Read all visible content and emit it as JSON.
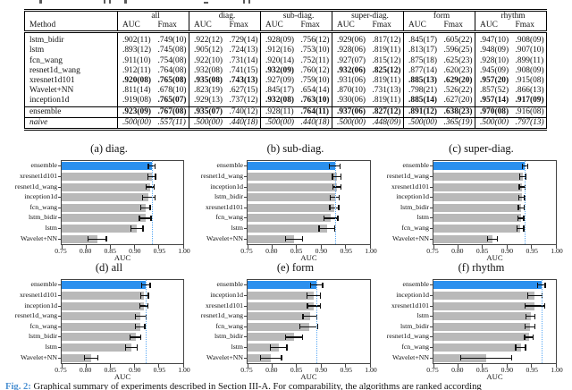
{
  "page": {
    "fig_caption": {
      "label": "Fig. 2:",
      "text": " Graphical summary of experiments described in Section III-A. For comparability, the algorithms are ranked according"
    },
    "colors": {
      "highlight_blue": "#2b90ee",
      "bar_gray": "#b9b9b9",
      "ref_line_blue": "#5aa9f5",
      "caption_label_blue": "#4a90d2",
      "error_bar": "#101010"
    }
  },
  "table": {
    "method_header": "Method",
    "groups": [
      "all",
      "diag.",
      "sub-diag.",
      "super-diag.",
      "form",
      "rhythm"
    ],
    "metrics": [
      "AUC",
      "Fmax"
    ],
    "rows": [
      {
        "method": "lstm_bidir",
        "values": [
          ".902(11)",
          ".749(10)",
          ".922(12)",
          ".729(14)",
          ".928(09)",
          ".756(12)",
          ".929(06)",
          ".817(12)",
          ".845(17)",
          ".605(22)",
          ".947(10)",
          ".908(09)"
        ],
        "bold": [
          0,
          0,
          0,
          0,
          0,
          0,
          0,
          0,
          0,
          0,
          0,
          0
        ]
      },
      {
        "method": "lstm",
        "values": [
          ".893(12)",
          ".745(08)",
          ".905(12)",
          ".724(13)",
          ".912(16)",
          ".753(10)",
          ".928(06)",
          ".819(11)",
          ".813(17)",
          ".596(25)",
          ".948(09)",
          ".907(10)"
        ],
        "bold": [
          0,
          0,
          0,
          0,
          0,
          0,
          0,
          0,
          0,
          0,
          0,
          0
        ]
      },
      {
        "method": "fcn_wang",
        "values": [
          ".911(10)",
          ".754(08)",
          ".922(10)",
          ".731(14)",
          ".920(14)",
          ".752(11)",
          ".927(07)",
          ".815(12)",
          ".875(18)",
          ".625(23)",
          ".928(10)",
          ".899(11)"
        ],
        "bold": [
          0,
          0,
          0,
          0,
          0,
          0,
          0,
          0,
          0,
          0,
          0,
          0
        ]
      },
      {
        "method": "resnet1d_wang",
        "values": [
          ".912(11)",
          ".764(08)",
          ".932(08)",
          ".741(15)",
          ".932(09)",
          ".760(12)",
          ".932(06)",
          ".825(12)",
          ".877(14)",
          ".620(23)",
          ".945(09)",
          ".908(09)"
        ],
        "bold": [
          0,
          0,
          0,
          0,
          1,
          0,
          1,
          1,
          0,
          0,
          0,
          0
        ]
      },
      {
        "method": "xresnet1d101",
        "values": [
          ".920(08)",
          ".765(08)",
          ".935(08)",
          ".743(13)",
          ".927(09)",
          ".759(10)",
          ".931(06)",
          ".819(11)",
          ".885(13)",
          ".629(20)",
          ".957(20)",
          ".915(08)"
        ],
        "bold": [
          1,
          1,
          1,
          1,
          0,
          0,
          0,
          0,
          1,
          1,
          1,
          0
        ]
      },
      {
        "method": "Wavelet+NN",
        "values": [
          ".811(14)",
          ".678(10)",
          ".823(19)",
          ".627(15)",
          ".845(17)",
          ".654(14)",
          ".870(10)",
          ".731(13)",
          ".798(21)",
          ".526(22)",
          ".857(52)",
          ".866(13)"
        ],
        "bold": [
          0,
          0,
          0,
          0,
          0,
          0,
          0,
          0,
          0,
          0,
          0,
          0
        ]
      },
      {
        "method": "inception1d",
        "values": [
          ".919(08)",
          ".765(07)",
          ".929(13)",
          ".737(12)",
          ".932(08)",
          ".763(10)",
          ".930(06)",
          ".819(11)",
          ".885(14)",
          ".627(20)",
          ".957(14)",
          ".917(09)"
        ],
        "bold": [
          0,
          1,
          0,
          0,
          1,
          1,
          0,
          0,
          1,
          0,
          1,
          1
        ]
      },
      {
        "method": "ensemble",
        "values": [
          ".923(09)",
          ".767(08)",
          ".935(07)",
          ".740(12)",
          ".928(11)",
          ".764(11)",
          ".937(06)",
          ".827(12)",
          ".891(12)",
          ".638(23)",
          ".970(08)",
          ".916(08)"
        ],
        "bold": [
          1,
          1,
          1,
          0,
          0,
          1,
          1,
          1,
          1,
          1,
          1,
          0
        ],
        "separated": true
      },
      {
        "method": "naive",
        "values": [
          ".500(00)",
          ".557(11)",
          ".500(00)",
          ".440(18)",
          ".500(00)",
          ".440(18)",
          ".500(00)",
          ".448(09)",
          ".500(00)",
          ".365(19)",
          ".500(00)",
          ".797(13)"
        ],
        "bold": [
          0,
          0,
          0,
          0,
          0,
          0,
          0,
          0,
          0,
          0,
          0,
          0
        ],
        "italic": true,
        "separated": true
      }
    ]
  },
  "chart_data": [
    {
      "id": "a",
      "caption": "(a) diag.",
      "type": "bar",
      "orientation": "horizontal",
      "xlabel": "AUC",
      "xlim": [
        0.75,
        1.0
      ],
      "xticks": [
        "0.75",
        "0.80",
        "0.85",
        "0.90",
        "0.95",
        "1.00"
      ],
      "grid": false,
      "ref_line": 0.935,
      "highlight_index": 0,
      "categories": [
        "ensemble",
        "xresnet1d101",
        "resnet1d_wang",
        "inception1d",
        "fcn_wang",
        "lstm_bidir",
        "lstm",
        "Wavelet+NN"
      ],
      "values": [
        0.935,
        0.935,
        0.932,
        0.929,
        0.922,
        0.922,
        0.905,
        0.823
      ],
      "errors": [
        0.007,
        0.008,
        0.008,
        0.013,
        0.01,
        0.012,
        0.012,
        0.019
      ]
    },
    {
      "id": "b",
      "caption": "(b) sub-diag.",
      "type": "bar",
      "orientation": "horizontal",
      "xlabel": "AUC",
      "xlim": [
        0.75,
        1.0
      ],
      "xticks": [
        "0.75",
        "0.80",
        "0.85",
        "0.90",
        "0.95",
        "1.00"
      ],
      "grid": false,
      "ref_line": 0.928,
      "highlight_index": 0,
      "categories": [
        "ensemble",
        "resnet1d_wang",
        "inception1d",
        "lstm_bidir",
        "xresnet1d101",
        "fcn_wang",
        "lstm",
        "Wavelet+NN"
      ],
      "values": [
        0.928,
        0.932,
        0.932,
        0.928,
        0.927,
        0.92,
        0.912,
        0.845
      ],
      "errors": [
        0.011,
        0.009,
        0.008,
        0.009,
        0.009,
        0.014,
        0.016,
        0.017
      ]
    },
    {
      "id": "c",
      "caption": "(c) super-diag.",
      "type": "bar",
      "orientation": "horizontal",
      "xlabel": "AUC",
      "xlim": [
        0.75,
        1.0
      ],
      "xticks": [
        "0.75",
        "0.80",
        "0.85",
        "0.90",
        "0.95",
        "1.00"
      ],
      "grid": false,
      "ref_line": 0.937,
      "highlight_index": 0,
      "categories": [
        "ensemble",
        "resnet1d_wang",
        "xresnet1d101",
        "inception1d",
        "lstm_bidir",
        "lstm",
        "fcn_wang",
        "Wavelet+NN"
      ],
      "values": [
        0.937,
        0.932,
        0.931,
        0.93,
        0.929,
        0.928,
        0.927,
        0.87
      ],
      "errors": [
        0.006,
        0.006,
        0.006,
        0.006,
        0.006,
        0.006,
        0.007,
        0.01
      ]
    },
    {
      "id": "d",
      "caption": "(d) all",
      "type": "bar",
      "orientation": "horizontal",
      "xlabel": "AUC",
      "xlim": [
        0.75,
        1.0
      ],
      "xticks": [
        "0.75",
        "0.80",
        "0.85",
        "0.90",
        "0.95",
        "1.00"
      ],
      "grid": false,
      "ref_line": 0.923,
      "highlight_index": 0,
      "categories": [
        "ensemble",
        "xresnet1d101",
        "inception1d",
        "resnet1d_wang",
        "fcn_wang",
        "lstm_bidir",
        "lstm",
        "Wavelet+NN"
      ],
      "values": [
        0.923,
        0.92,
        0.919,
        0.912,
        0.911,
        0.902,
        0.893,
        0.811
      ],
      "errors": [
        0.009,
        0.008,
        0.008,
        0.011,
        0.01,
        0.011,
        0.012,
        0.014
      ]
    },
    {
      "id": "e",
      "caption": "(e) form",
      "type": "bar",
      "orientation": "horizontal",
      "xlabel": "AUC",
      "xlim": [
        0.75,
        1.0
      ],
      "xticks": [
        "0.75",
        "0.80",
        "0.85",
        "0.90",
        "0.95",
        "1.00"
      ],
      "grid": false,
      "ref_line": 0.891,
      "highlight_index": 0,
      "categories": [
        "ensemble",
        "inception1d",
        "xresnet1d101",
        "resnet1d_wang",
        "fcn_wang",
        "lstm_bidir",
        "lstm",
        "Wavelet+NN"
      ],
      "values": [
        0.891,
        0.885,
        0.885,
        0.877,
        0.875,
        0.845,
        0.813,
        0.798
      ],
      "errors": [
        0.012,
        0.014,
        0.013,
        0.014,
        0.018,
        0.017,
        0.017,
        0.021
      ]
    },
    {
      "id": "f",
      "caption": "(f) rhythm",
      "type": "bar",
      "orientation": "horizontal",
      "xlabel": "AUC",
      "xlim": [
        0.75,
        1.0
      ],
      "xticks": [
        "0.75",
        "0.80",
        "0.85",
        "0.90",
        "0.95",
        "1.00"
      ],
      "grid": false,
      "ref_line": 0.97,
      "highlight_index": 0,
      "categories": [
        "ensemble",
        "inception1d",
        "xresnet1d101",
        "lstm",
        "lstm_bidir",
        "resnet1d_wang",
        "fcn_wang",
        "Wavelet+NN"
      ],
      "values": [
        0.97,
        0.957,
        0.957,
        0.948,
        0.947,
        0.945,
        0.928,
        0.857
      ],
      "errors": [
        0.008,
        0.014,
        0.02,
        0.009,
        0.01,
        0.009,
        0.01,
        0.052
      ]
    }
  ]
}
